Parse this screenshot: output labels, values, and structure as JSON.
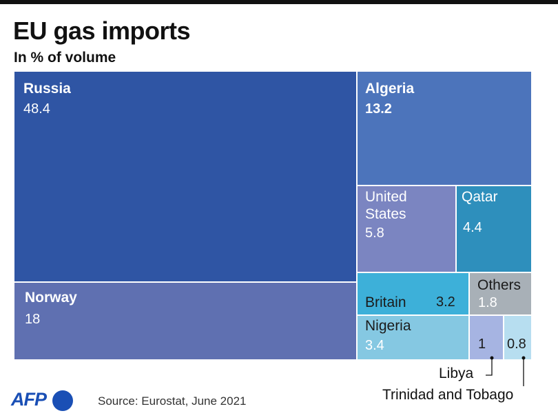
{
  "title": "EU gas imports",
  "subtitle": "In % of volume",
  "source": "Source: Eurostat, June 2021",
  "logo": "AFP",
  "chart_data": {
    "type": "treemap",
    "title": "EU gas imports",
    "subtitle": "In % of volume",
    "unit": "%",
    "items": [
      {
        "name": "Russia",
        "value": 48.4,
        "label": "Russia",
        "value_label": "48.4",
        "color": "#2f55a4"
      },
      {
        "name": "Norway",
        "value": 18,
        "label": "Norway",
        "value_label": "18",
        "color": "#5f70b1"
      },
      {
        "name": "Algeria",
        "value": 13.2,
        "label": "Algeria",
        "value_label": "13.2",
        "color": "#4c74bb"
      },
      {
        "name": "United States",
        "value": 5.8,
        "label_lines": [
          "United",
          "States"
        ],
        "value_label": "5.8",
        "color": "#7b85c1"
      },
      {
        "name": "Qatar",
        "value": 4.4,
        "label": "Qatar",
        "value_label": "4.4",
        "color": "#2e8fbc"
      },
      {
        "name": "Britain",
        "value": 3.2,
        "label": "Britain",
        "value_label": "3.2",
        "color": "#3db0d9"
      },
      {
        "name": "Nigeria",
        "value": 3.4,
        "label": "Nigeria",
        "value_label": "3.4",
        "color": "#85c8e2"
      },
      {
        "name": "Others",
        "value": 1.8,
        "label": "Others",
        "value_label": "1.8",
        "color": "#a8b0b7"
      },
      {
        "name": "Libya",
        "value": 1,
        "label": "Libya",
        "value_label": "1",
        "color": "#a6b4e2"
      },
      {
        "name": "Trinidad and Tobago",
        "value": 0.8,
        "label": "Trinidad and Tobago",
        "value_label": "0.8",
        "color": "#b7def0"
      }
    ]
  }
}
